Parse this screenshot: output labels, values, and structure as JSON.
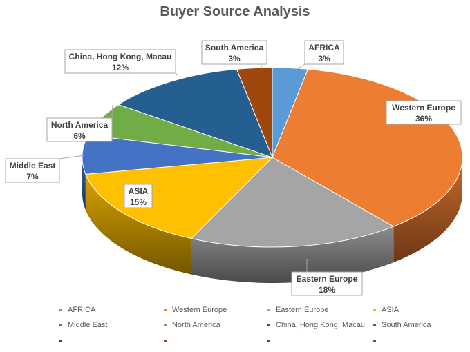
{
  "chart_data": {
    "type": "pie",
    "title": "Buyer Source Analysis",
    "categories": [
      "AFRICA",
      "Western Europe",
      "Eastern Europe",
      "ASIA",
      "Middle East",
      "North America",
      "China, Hong Kong, Macau",
      "South America"
    ],
    "values": [
      3,
      36,
      18,
      15,
      7,
      6,
      12,
      3
    ],
    "data_labels": [
      "3%",
      "36%",
      "18%",
      "15%",
      "7%",
      "6%",
      "12%",
      "3%"
    ],
    "colors": [
      "#5B9BD5",
      "#ED7D31",
      "#A5A5A5",
      "#FFC000",
      "#4472C4",
      "#70AD47",
      "#255E91",
      "#9E480E"
    ],
    "three_d": true,
    "legend_position": "bottom"
  },
  "legend_extra_colors": [
    "#264478",
    "#9E480E",
    "#255E91",
    "#43682B"
  ]
}
